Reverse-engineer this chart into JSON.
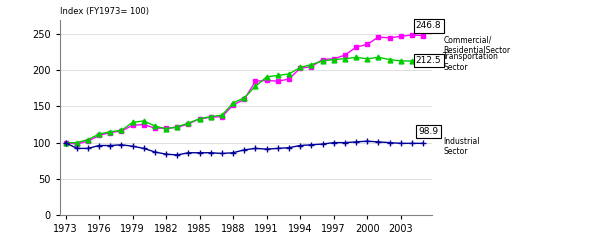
{
  "title": "Index (FY1973= 100)",
  "years": [
    1973,
    1974,
    1975,
    1976,
    1977,
    1978,
    1979,
    1980,
    1981,
    1982,
    1983,
    1984,
    1985,
    1986,
    1987,
    1988,
    1989,
    1990,
    1991,
    1992,
    1993,
    1994,
    1995,
    1996,
    1997,
    1998,
    1999,
    2000,
    2001,
    2002,
    2003,
    2004,
    2005
  ],
  "commercial_residential": [
    100,
    98,
    102,
    110,
    114,
    116,
    124,
    125,
    120,
    120,
    121,
    126,
    133,
    135,
    136,
    152,
    160,
    185,
    186,
    185,
    188,
    203,
    205,
    215,
    216,
    221,
    232,
    236,
    246,
    245,
    247,
    249,
    248
  ],
  "transportation": [
    100,
    100,
    104,
    112,
    115,
    117,
    128,
    130,
    123,
    119,
    122,
    127,
    133,
    136,
    138,
    155,
    162,
    178,
    191,
    193,
    195,
    204,
    208,
    213,
    215,
    216,
    218,
    216,
    218,
    215,
    213,
    213,
    212
  ],
  "industrial": [
    100,
    92,
    92,
    96,
    96,
    97,
    95,
    92,
    87,
    84,
    83,
    86,
    86,
    86,
    85,
    86,
    90,
    92,
    91,
    92,
    93,
    96,
    97,
    98,
    100,
    100,
    101,
    102,
    101,
    100,
    99,
    99,
    99
  ],
  "commercial_color": "#FF00FF",
  "transportation_color": "#00CC00",
  "industrial_color": "#000099",
  "end_labels": {
    "commercial": "246.8",
    "transportation": "212.5",
    "industrial": "98.9"
  },
  "legend_labels": {
    "commercial": "Commercial/\nResidentialSector",
    "transportation": "Transportation\nSector",
    "industrial": "Industrial\nSector"
  },
  "ylim": [
    0,
    270
  ],
  "xlim": [
    1972.5,
    2005.8
  ],
  "yticks": [
    0,
    50,
    100,
    150,
    200,
    250
  ],
  "xticks": [
    1973,
    1976,
    1979,
    1982,
    1985,
    1988,
    1991,
    1994,
    1997,
    2000,
    2003
  ]
}
